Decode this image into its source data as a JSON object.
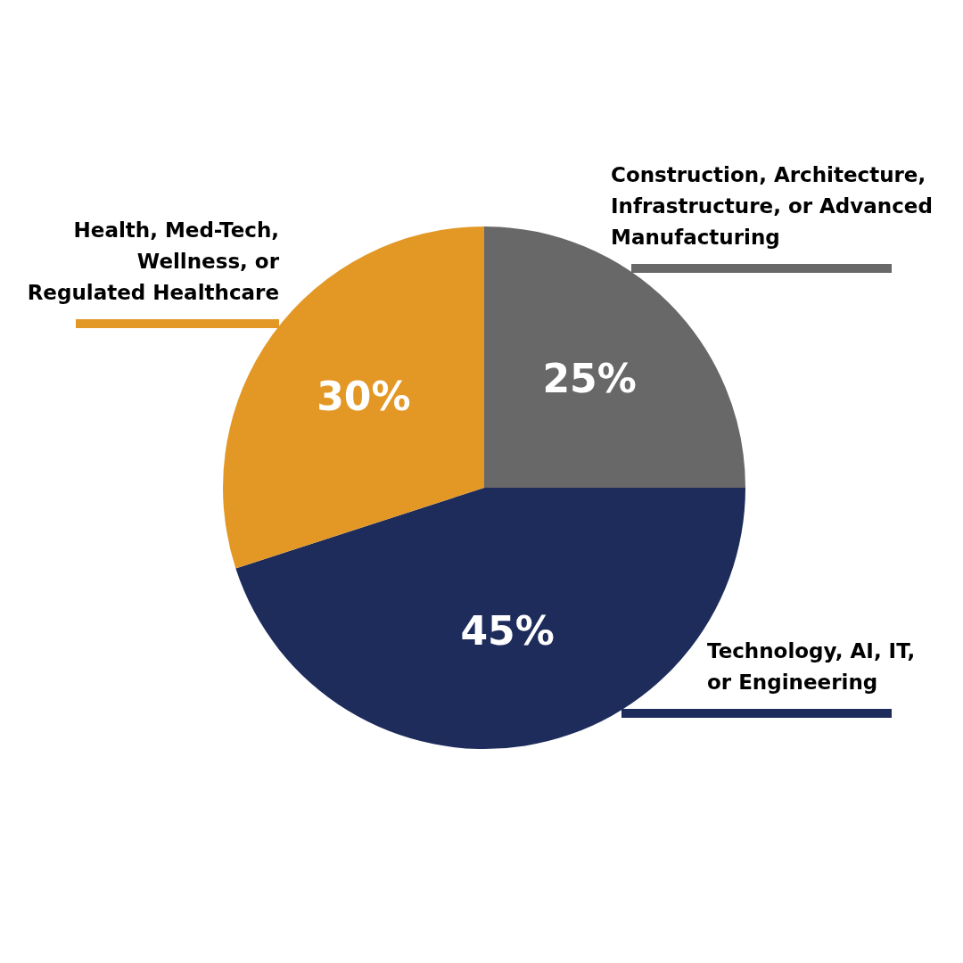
{
  "chart_data": {
    "type": "pie",
    "categories": [
      "Construction, Architecture, Infrastructure, or Advanced Manufacturing",
      "Technology, AI, IT, or Engineering",
      "Health, Med-Tech, Wellness, or Regulated Healthcare"
    ],
    "values": [
      25,
      45,
      30
    ],
    "colors": [
      "#686868",
      "#1e2c5c",
      "#e39826"
    ],
    "value_labels": [
      "25%",
      "45%",
      "30%"
    ]
  }
}
